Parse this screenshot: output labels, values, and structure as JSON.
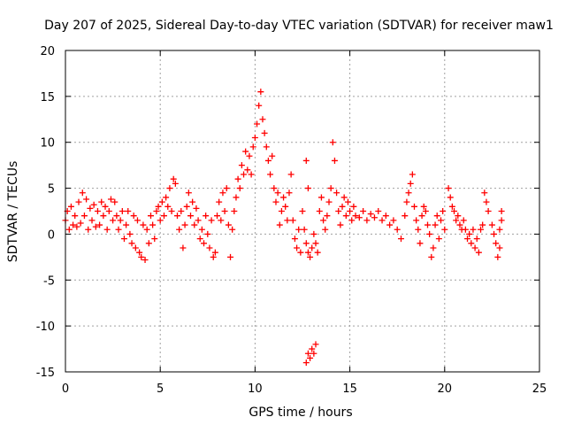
{
  "chart_data": {
    "type": "scatter",
    "title": "Day 207 of 2025, Sidereal Day-to-day VTEC variation (SDTVAR) for receiver maw1",
    "xlabel": "GPS time / hours",
    "ylabel": "SDTVAR / TECUs",
    "xlim": [
      0,
      25
    ],
    "ylim": [
      -15,
      20
    ],
    "xticks": [
      0,
      5,
      10,
      15,
      20,
      25
    ],
    "yticks": [
      -15,
      -10,
      -5,
      0,
      5,
      10,
      15,
      20
    ],
    "grid": true,
    "marker": "+",
    "marker_color": "#ff0000",
    "series": [
      {
        "name": "SDTVAR",
        "points": [
          [
            0.0,
            1.5
          ],
          [
            0.1,
            2.5
          ],
          [
            0.2,
            0.5
          ],
          [
            0.3,
            3.0
          ],
          [
            0.4,
            1.0
          ],
          [
            0.5,
            2.0
          ],
          [
            0.6,
            0.8
          ],
          [
            0.7,
            3.5
          ],
          [
            0.8,
            1.2
          ],
          [
            0.9,
            4.5
          ],
          [
            1.0,
            2.0
          ],
          [
            1.1,
            3.8
          ],
          [
            1.2,
            0.5
          ],
          [
            1.3,
            2.8
          ],
          [
            1.4,
            1.5
          ],
          [
            1.5,
            3.2
          ],
          [
            1.6,
            0.8
          ],
          [
            1.7,
            2.5
          ],
          [
            1.8,
            1.0
          ],
          [
            1.9,
            3.5
          ],
          [
            2.0,
            2.0
          ],
          [
            2.1,
            3.0
          ],
          [
            2.2,
            0.5
          ],
          [
            2.3,
            2.5
          ],
          [
            2.4,
            3.8
          ],
          [
            2.5,
            1.5
          ],
          [
            2.6,
            3.5
          ],
          [
            2.7,
            2.0
          ],
          [
            2.8,
            0.5
          ],
          [
            2.9,
            1.5
          ],
          [
            3.0,
            2.5
          ],
          [
            3.1,
            -0.5
          ],
          [
            3.2,
            1.0
          ],
          [
            3.3,
            2.5
          ],
          [
            3.4,
            0.0
          ],
          [
            3.5,
            -1.0
          ],
          [
            3.6,
            2.0
          ],
          [
            3.7,
            -1.5
          ],
          [
            3.8,
            1.5
          ],
          [
            3.9,
            -2.0
          ],
          [
            4.0,
            -2.5
          ],
          [
            4.1,
            1.0
          ],
          [
            4.2,
            -2.8
          ],
          [
            4.3,
            0.5
          ],
          [
            4.4,
            -1.0
          ],
          [
            4.5,
            2.0
          ],
          [
            4.6,
            1.0
          ],
          [
            4.7,
            -0.5
          ],
          [
            4.8,
            2.5
          ],
          [
            4.9,
            3.0
          ],
          [
            5.0,
            1.5
          ],
          [
            5.1,
            3.5
          ],
          [
            5.2,
            2.0
          ],
          [
            5.3,
            4.0
          ],
          [
            5.4,
            3.0
          ],
          [
            5.5,
            5.0
          ],
          [
            5.6,
            2.5
          ],
          [
            5.7,
            6.0
          ],
          [
            5.8,
            5.5
          ],
          [
            5.9,
            2.0
          ],
          [
            6.0,
            0.5
          ],
          [
            6.1,
            2.5
          ],
          [
            6.2,
            -1.5
          ],
          [
            6.3,
            1.0
          ],
          [
            6.4,
            3.0
          ],
          [
            6.5,
            4.5
          ],
          [
            6.6,
            2.0
          ],
          [
            6.7,
            3.5
          ],
          [
            6.8,
            1.0
          ],
          [
            6.9,
            2.8
          ],
          [
            7.0,
            1.5
          ],
          [
            7.1,
            -0.5
          ],
          [
            7.2,
            0.5
          ],
          [
            7.3,
            -1.0
          ],
          [
            7.4,
            2.0
          ],
          [
            7.5,
            0.0
          ],
          [
            7.6,
            -1.5
          ],
          [
            7.7,
            1.5
          ],
          [
            7.8,
            -2.5
          ],
          [
            7.9,
            -2.0
          ],
          [
            8.0,
            2.0
          ],
          [
            8.1,
            3.5
          ],
          [
            8.2,
            1.5
          ],
          [
            8.3,
            4.5
          ],
          [
            8.4,
            2.5
          ],
          [
            8.5,
            5.0
          ],
          [
            8.6,
            1.0
          ],
          [
            8.7,
            -2.5
          ],
          [
            8.8,
            0.5
          ],
          [
            8.9,
            2.5
          ],
          [
            9.0,
            4.0
          ],
          [
            9.1,
            6.0
          ],
          [
            9.2,
            5.0
          ],
          [
            9.3,
            7.5
          ],
          [
            9.4,
            6.5
          ],
          [
            9.5,
            9.0
          ],
          [
            9.6,
            7.0
          ],
          [
            9.7,
            8.5
          ],
          [
            9.8,
            6.5
          ],
          [
            9.9,
            9.5
          ],
          [
            10.0,
            10.5
          ],
          [
            10.1,
            12.0
          ],
          [
            10.2,
            14.0
          ],
          [
            10.3,
            15.5
          ],
          [
            10.4,
            12.5
          ],
          [
            10.5,
            11.0
          ],
          [
            10.6,
            9.5
          ],
          [
            10.7,
            8.0
          ],
          [
            10.8,
            6.5
          ],
          [
            10.9,
            8.5
          ],
          [
            11.0,
            5.0
          ],
          [
            11.1,
            3.5
          ],
          [
            11.2,
            4.5
          ],
          [
            11.3,
            1.0
          ],
          [
            11.4,
            2.5
          ],
          [
            11.5,
            4.0
          ],
          [
            11.6,
            3.0
          ],
          [
            11.7,
            1.5
          ],
          [
            11.8,
            4.5
          ],
          [
            11.9,
            6.5
          ],
          [
            12.0,
            1.5
          ],
          [
            12.1,
            -0.5
          ],
          [
            12.2,
            -1.5
          ],
          [
            12.3,
            0.5
          ],
          [
            12.4,
            -2.0
          ],
          [
            12.5,
            2.5
          ],
          [
            12.6,
            0.5
          ],
          [
            12.7,
            -1.0
          ],
          [
            12.8,
            -2.0
          ],
          [
            12.9,
            -2.5
          ],
          [
            12.7,
            -14.0
          ],
          [
            12.8,
            -13.0
          ],
          [
            12.9,
            -13.5
          ],
          [
            13.0,
            -12.5
          ],
          [
            13.1,
            -13.0
          ],
          [
            13.2,
            -12.0
          ],
          [
            12.7,
            8.0
          ],
          [
            12.8,
            5.0
          ],
          [
            13.0,
            -1.5
          ],
          [
            13.1,
            0.0
          ],
          [
            13.2,
            -1.0
          ],
          [
            13.3,
            -2.0
          ],
          [
            13.4,
            2.5
          ],
          [
            13.5,
            4.0
          ],
          [
            13.6,
            1.5
          ],
          [
            13.7,
            0.5
          ],
          [
            13.8,
            2.0
          ],
          [
            13.9,
            3.5
          ],
          [
            14.0,
            5.0
          ],
          [
            14.1,
            10.0
          ],
          [
            14.2,
            8.0
          ],
          [
            14.3,
            4.5
          ],
          [
            14.4,
            2.5
          ],
          [
            14.5,
            1.0
          ],
          [
            14.6,
            3.0
          ],
          [
            14.7,
            4.0
          ],
          [
            14.8,
            2.0
          ],
          [
            14.9,
            3.5
          ],
          [
            15.0,
            2.5
          ],
          [
            15.1,
            1.5
          ],
          [
            15.2,
            3.0
          ],
          [
            15.3,
            2.0
          ],
          [
            15.5,
            1.8
          ],
          [
            15.7,
            2.5
          ],
          [
            15.9,
            1.5
          ],
          [
            16.1,
            2.2
          ],
          [
            16.3,
            1.8
          ],
          [
            16.5,
            2.5
          ],
          [
            16.7,
            1.5
          ],
          [
            16.9,
            2.0
          ],
          [
            17.1,
            1.0
          ],
          [
            17.3,
            1.5
          ],
          [
            17.5,
            0.5
          ],
          [
            17.7,
            -0.5
          ],
          [
            17.9,
            2.0
          ],
          [
            18.0,
            3.5
          ],
          [
            18.1,
            4.5
          ],
          [
            18.2,
            5.5
          ],
          [
            18.3,
            6.5
          ],
          [
            18.4,
            3.0
          ],
          [
            18.5,
            1.5
          ],
          [
            18.6,
            0.5
          ],
          [
            18.7,
            -1.0
          ],
          [
            18.8,
            2.0
          ],
          [
            18.9,
            3.0
          ],
          [
            19.0,
            2.5
          ],
          [
            19.1,
            1.0
          ],
          [
            19.2,
            0.0
          ],
          [
            19.3,
            -2.5
          ],
          [
            19.4,
            -1.5
          ],
          [
            19.5,
            1.0
          ],
          [
            19.6,
            2.0
          ],
          [
            19.7,
            -0.5
          ],
          [
            19.8,
            1.5
          ],
          [
            19.9,
            2.5
          ],
          [
            20.0,
            0.5
          ],
          [
            20.2,
            5.0
          ],
          [
            20.3,
            4.0
          ],
          [
            20.4,
            3.0
          ],
          [
            20.5,
            2.5
          ],
          [
            20.6,
            1.5
          ],
          [
            20.7,
            2.0
          ],
          [
            20.8,
            1.0
          ],
          [
            20.9,
            0.5
          ],
          [
            21.0,
            1.5
          ],
          [
            21.1,
            0.5
          ],
          [
            21.2,
            -0.5
          ],
          [
            21.3,
            0.0
          ],
          [
            21.4,
            -1.0
          ],
          [
            21.5,
            0.5
          ],
          [
            21.6,
            -1.5
          ],
          [
            21.7,
            -0.5
          ],
          [
            21.8,
            -2.0
          ],
          [
            21.9,
            0.5
          ],
          [
            22.0,
            1.0
          ],
          [
            22.1,
            4.5
          ],
          [
            22.2,
            3.5
          ],
          [
            22.3,
            2.5
          ],
          [
            22.5,
            1.0
          ],
          [
            22.6,
            0.0
          ],
          [
            22.7,
            -1.0
          ],
          [
            22.8,
            -2.5
          ],
          [
            22.9,
            0.5
          ],
          [
            23.0,
            1.5
          ],
          [
            23.0,
            2.5
          ],
          [
            22.9,
            -1.5
          ]
        ]
      }
    ]
  }
}
